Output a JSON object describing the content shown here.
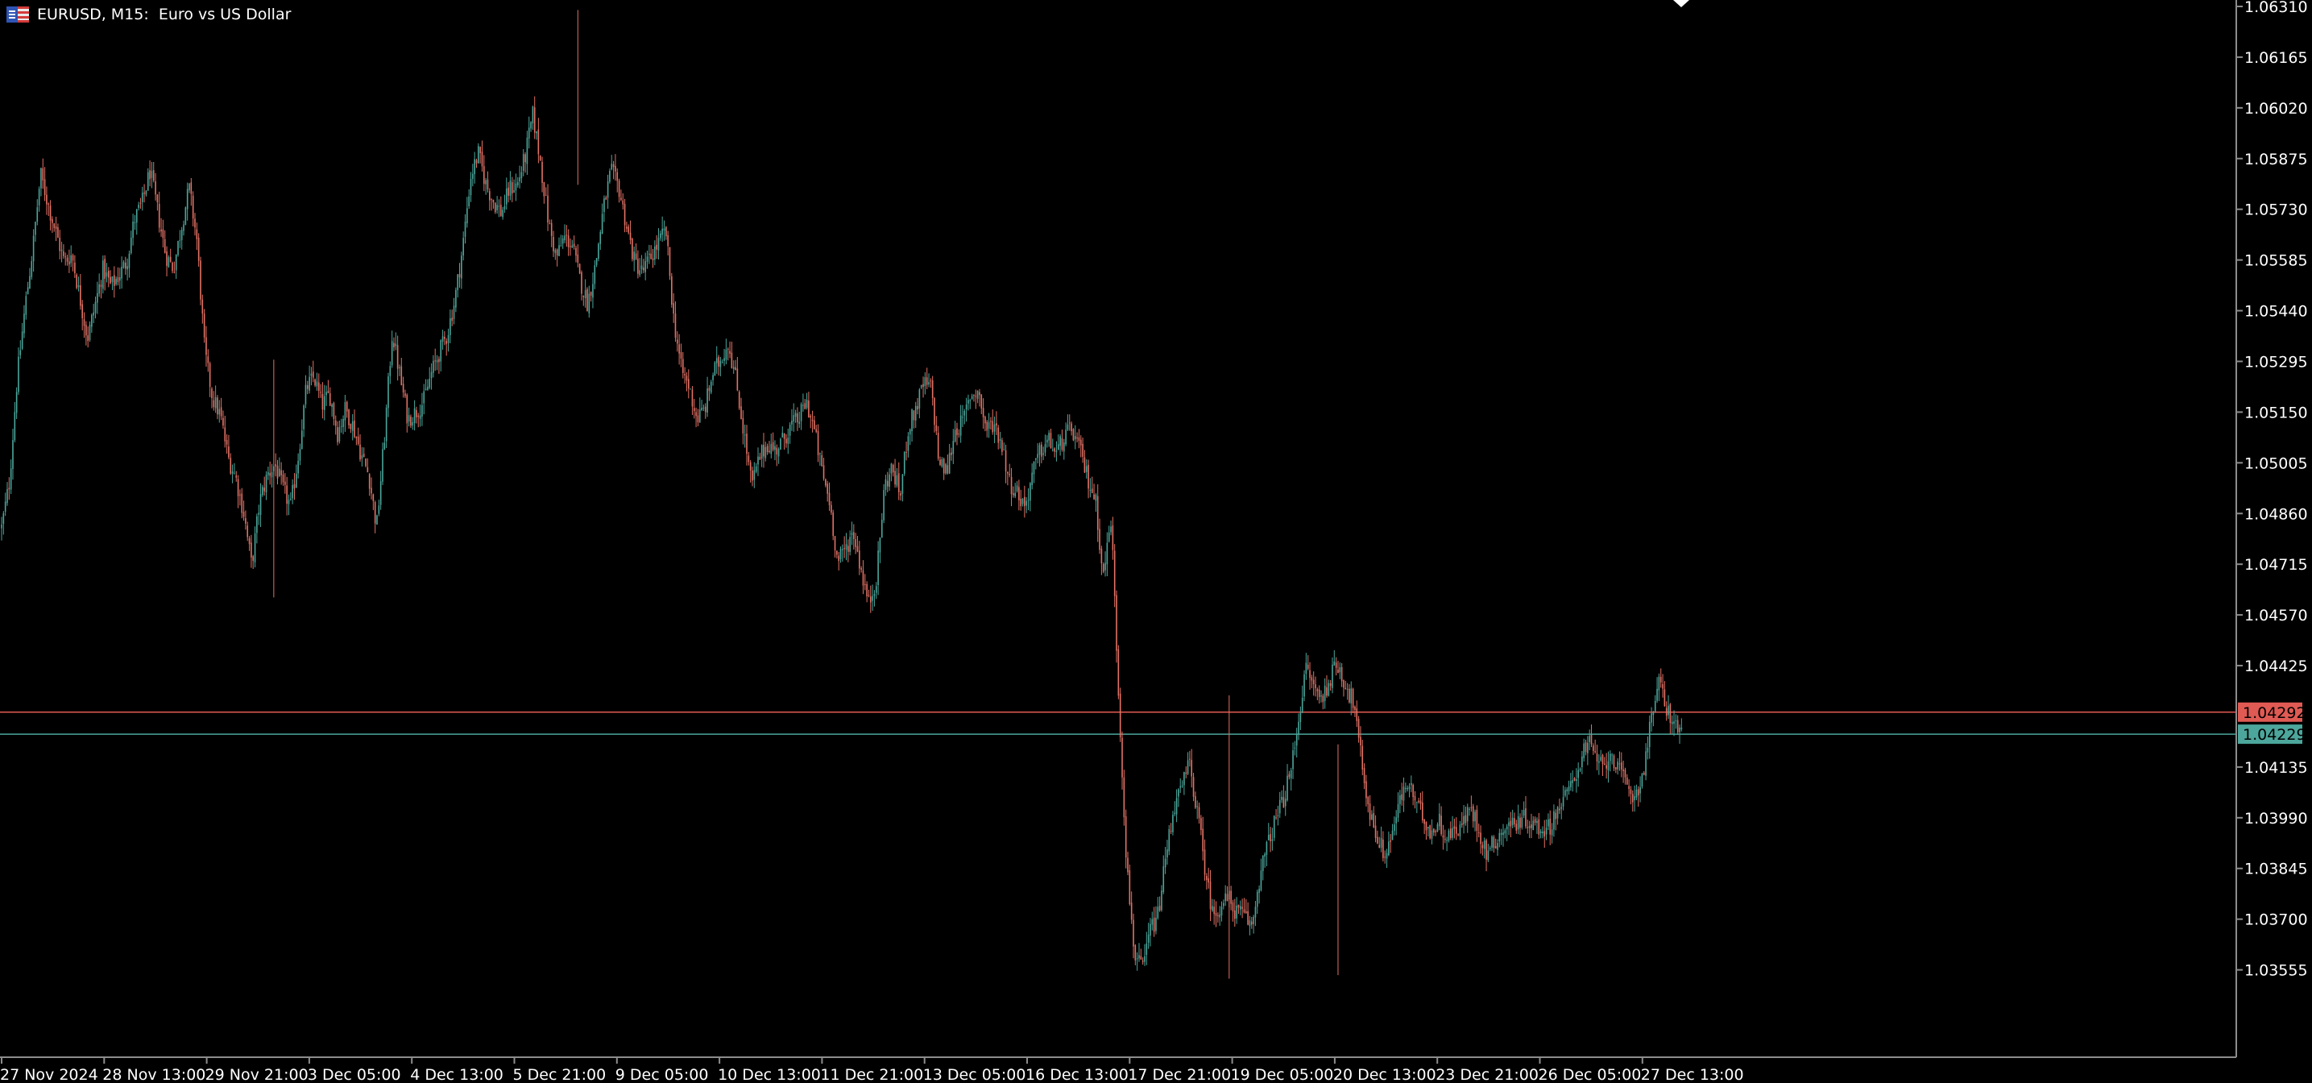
{
  "window": {
    "title": "EURUSD, M15:  Euro vs US Dollar",
    "flag_icon": "eu-us-flag-icon"
  },
  "colors": {
    "background": "#000000",
    "axis": "#8C8C8C",
    "axis_text": "#FFFFFF",
    "bull_candle": "#4CA69B",
    "bear_candle": "#E27265",
    "bid_line": "#E05A54",
    "ask_line": "#4CA69B"
  },
  "chart_data": {
    "type": "candlestick",
    "symbol": "EURUSD",
    "timeframe": "M15",
    "title": "EURUSD, M15:  Euro vs US Dollar",
    "ylim": [
      1.03455,
      1.0631
    ],
    "y_ticks": [
      "1.06310",
      "1.06165",
      "1.06020",
      "1.05875",
      "1.05730",
      "1.05585",
      "1.05440",
      "1.05295",
      "1.05150",
      "1.05005",
      "1.04860",
      "1.04715",
      "1.04570",
      "1.04425",
      "1.04135",
      "1.03990",
      "1.03845",
      "1.03700",
      "1.03555"
    ],
    "x_ticks": [
      "27 Nov 2024",
      "28 Nov 13:00",
      "29 Nov 21:00",
      "3 Dec 05:00",
      "4 Dec 13:00",
      "5 Dec 21:00",
      "9 Dec 05:00",
      "10 Dec 13:00",
      "11 Dec 21:00",
      "13 Dec 05:00",
      "16 Dec 13:00",
      "17 Dec 21:00",
      "19 Dec 05:00",
      "20 Dec 13:00",
      "23 Dec 21:00",
      "26 Dec 05:00",
      "27 Dec 13:00"
    ],
    "price_lines": [
      {
        "label": "1.04292",
        "value": 1.04292,
        "kind": "bid"
      },
      {
        "label": "1.04229",
        "value": 1.04229,
        "kind": "ask"
      }
    ],
    "close_path": [
      1.0482,
      1.0495,
      1.0525,
      1.0545,
      1.0562,
      1.0583,
      1.0574,
      1.0566,
      1.0558,
      1.056,
      1.0548,
      1.0536,
      1.0546,
      1.0556,
      1.0551,
      1.0554,
      1.0558,
      1.057,
      1.0575,
      1.0584,
      1.0572,
      1.056,
      1.0556,
      1.0568,
      1.0579,
      1.0564,
      1.0532,
      1.0519,
      1.0514,
      1.0502,
      1.0496,
      1.0486,
      1.0471,
      1.0489,
      1.0497,
      1.05,
      1.0493,
      1.0488,
      1.0503,
      1.0522,
      1.0525,
      1.0517,
      1.052,
      1.0509,
      1.0516,
      1.0511,
      1.0503,
      1.0497,
      1.0482,
      1.0508,
      1.0538,
      1.0525,
      1.0513,
      1.0515,
      1.0518,
      1.0526,
      1.0532,
      1.0537,
      1.0547,
      1.0562,
      1.0582,
      1.0589,
      1.058,
      1.0575,
      1.0572,
      1.0579,
      1.058,
      1.0588,
      1.06,
      1.0586,
      1.0569,
      1.0559,
      1.0565,
      1.0563,
      1.0553,
      1.0546,
      1.0557,
      1.0573,
      1.0584,
      1.0579,
      1.0568,
      1.0558,
      1.0555,
      1.0559,
      1.0563,
      1.0567,
      1.0542,
      1.0527,
      1.0522,
      1.0513,
      1.0516,
      1.0526,
      1.053,
      1.0535,
      1.0524,
      1.0509,
      1.0494,
      1.0502,
      1.0506,
      1.0504,
      1.0507,
      1.0511,
      1.0513,
      1.0518,
      1.051,
      1.0498,
      1.0489,
      1.0472,
      1.0476,
      1.0481,
      1.047,
      1.046,
      1.0468,
      1.0494,
      1.0499,
      1.0491,
      1.051,
      1.0516,
      1.0523,
      1.0522,
      1.05,
      1.0498,
      1.051,
      1.0512,
      1.052,
      1.0521,
      1.051,
      1.0512,
      1.0506,
      1.0495,
      1.0492,
      1.0488,
      1.0498,
      1.0504,
      1.0507,
      1.0503,
      1.0508,
      1.051,
      1.0504,
      1.0496,
      1.049,
      1.0468,
      1.0485,
      1.0432,
      1.0385,
      1.036,
      1.0355,
      1.0367,
      1.0371,
      1.0388,
      1.0402,
      1.0407,
      1.0415,
      1.0401,
      1.0385,
      1.0371,
      1.0374,
      1.0376,
      1.0372,
      1.0371,
      1.0368,
      1.0382,
      1.0391,
      1.0398,
      1.0404,
      1.0412,
      1.0428,
      1.0442,
      1.0436,
      1.0433,
      1.0439,
      1.0443,
      1.0437,
      1.0432,
      1.0416,
      1.0401,
      1.0394,
      1.0388,
      1.0395,
      1.0404,
      1.0409,
      1.0403,
      1.0399,
      1.0395,
      1.0398,
      1.0393,
      1.0396,
      1.0397,
      1.0402,
      1.0396,
      1.0389,
      1.0392,
      1.0395,
      1.0397,
      1.0398,
      1.0399,
      1.0397,
      1.0396,
      1.0396,
      1.0401,
      1.0404,
      1.0409,
      1.0415,
      1.0421,
      1.0416,
      1.0413,
      1.0418,
      1.0412,
      1.0408,
      1.0405,
      1.0411,
      1.0425,
      1.0438,
      1.0431,
      1.0426,
      1.0423
    ]
  }
}
